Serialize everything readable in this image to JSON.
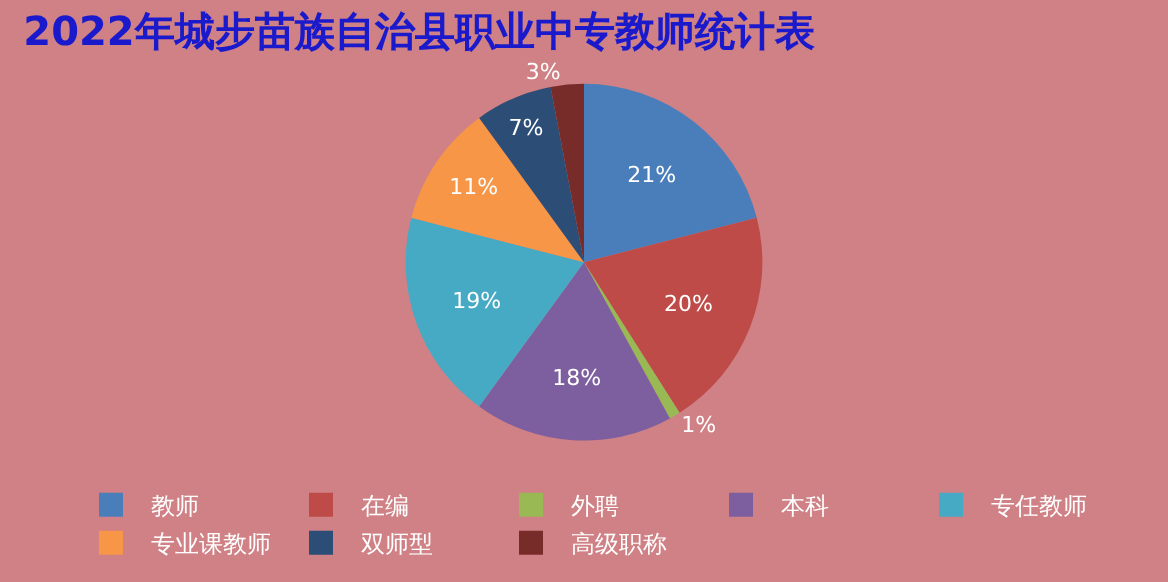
{
  "chart_data": {
    "type": "pie",
    "title": "2022年城步苗族自治县职业中专教师统计表",
    "categories": [
      "教师",
      "在编",
      "外聘",
      "本科",
      "专任教师",
      "专业课教师",
      "双师型",
      "高级职称"
    ],
    "values": [
      21,
      20,
      1,
      18,
      19,
      11,
      7,
      3
    ],
    "colors": [
      "#4a7ebb",
      "#be4b48",
      "#98b954",
      "#7d5fa0",
      "#46aac5",
      "#f79646",
      "#2c4d75",
      "#772c2a"
    ],
    "value_labels": [
      "21%",
      "20%",
      "1%",
      "18%",
      "19%",
      "11%",
      "7%",
      "3%"
    ],
    "legend": "bottom"
  }
}
